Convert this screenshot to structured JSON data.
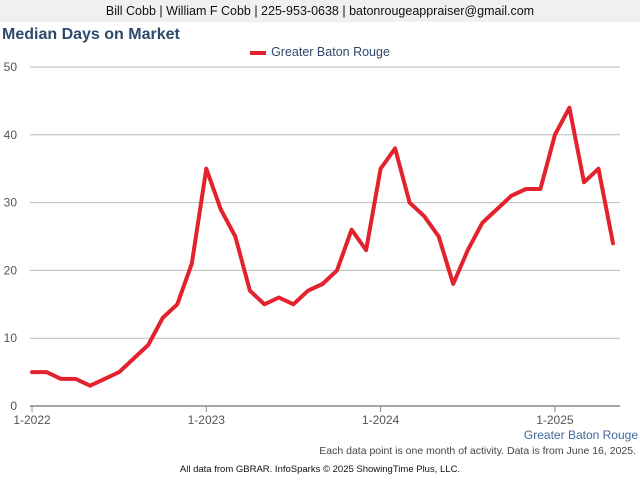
{
  "header": {
    "contact": "Bill Cobb | William F Cobb | 225-953-0638 | batonrougeappraiser@gmail.com"
  },
  "colors": {
    "line": "#e3222e",
    "grid": "#bbbbbb",
    "title": "#2e4a6b"
  },
  "chart_data": {
    "type": "line",
    "title": "Median Days on Market",
    "xlabel": "",
    "ylabel": "",
    "ylim": [
      0,
      50
    ],
    "yticks": [
      0,
      10,
      20,
      30,
      40,
      50
    ],
    "xtick_labels": [
      "1-2022",
      "1-2023",
      "1-2024",
      "1-2025"
    ],
    "xtick_indices": [
      0,
      12,
      24,
      36
    ],
    "legend_position": "top-center",
    "grid": true,
    "series": [
      {
        "name": "Greater Baton Rouge",
        "values": [
          5,
          5,
          4,
          4,
          3,
          4,
          5,
          7,
          9,
          13,
          15,
          21,
          35,
          29,
          25,
          17,
          15,
          16,
          15,
          17,
          18,
          20,
          26,
          23,
          35,
          38,
          30,
          28,
          25,
          18,
          23,
          27,
          29,
          31,
          32,
          32,
          40,
          44,
          33,
          35,
          24
        ]
      }
    ],
    "series_label": "Greater Baton Rouge"
  },
  "notes": {
    "data_point": "Each data point is one month of activity. Data is from June 16, 2025.",
    "footer": "All data from GBRAR. InfoSparks © 2025 ShowingTime Plus, LLC."
  }
}
